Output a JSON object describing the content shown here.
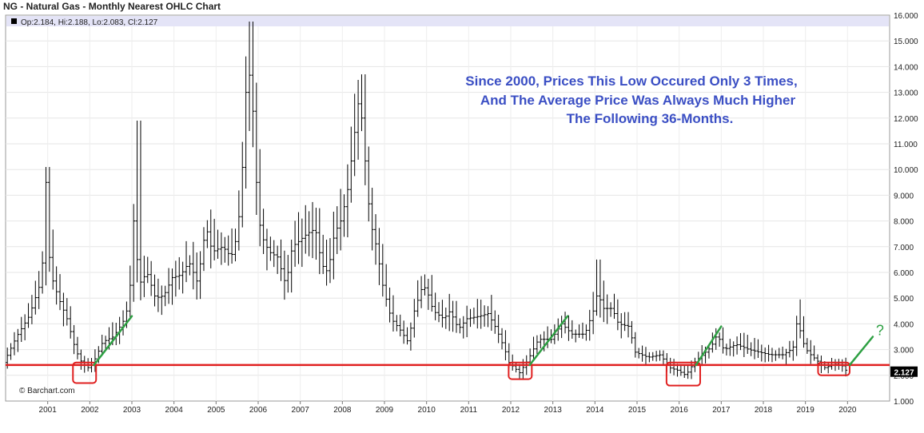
{
  "chart_data": {
    "type": "ohlc",
    "title": "NG - Natural Gas - Monthly Nearest OHLC Chart",
    "info_line": "Op:2.184, Hi:2.188, Lo:2.083, Cl:2.127",
    "annotation": [
      "Since 2000, Prices This Low Occured Only 3 Times,",
      "And The Average Price Was Always Much Higher",
      "The Following 36-Months."
    ],
    "question_mark": "?",
    "last_price": "2.127",
    "source": "© Barchart.com",
    "ylim": [
      1,
      16
    ],
    "y_ticks": [
      "1.000",
      "2.000",
      "3.000",
      "4.000",
      "5.000",
      "6.000",
      "7.000",
      "8.000",
      "9.000",
      "10.000",
      "11.000",
      "12.000",
      "13.000",
      "14.000",
      "15.000",
      "16.000"
    ],
    "x_ticks": [
      "2001",
      "2002",
      "2003",
      "2004",
      "2005",
      "2006",
      "2007",
      "2008",
      "2009",
      "2010",
      "2011",
      "2012",
      "2013",
      "2014",
      "2015",
      "2016",
      "2017",
      "2018",
      "2019",
      "2020"
    ],
    "support_level": 2.4,
    "colors": {
      "bars": "#000000",
      "support": "#e02020",
      "trend": "#2ea043",
      "annotation": "#3b4fc4",
      "info_bg": "#e4e4f7"
    },
    "low_boxes": [
      {
        "x_from": 2001.6,
        "x_to": 2002.15,
        "y_from": 1.7,
        "y_to": 2.5
      },
      {
        "x_from": 2011.95,
        "x_to": 2012.5,
        "y_from": 1.85,
        "y_to": 2.5
      },
      {
        "x_from": 2015.7,
        "x_to": 2016.5,
        "y_from": 1.6,
        "y_to": 2.5
      },
      {
        "x_from": 2019.3,
        "x_to": 2020.05,
        "y_from": 2.0,
        "y_to": 2.5
      }
    ],
    "trend_lines": [
      {
        "x1": 2002.1,
        "y1": 2.4,
        "x2": 2003.0,
        "y2": 4.3
      },
      {
        "x1": 2012.45,
        "y1": 2.4,
        "x2": 2013.35,
        "y2": 4.3
      },
      {
        "x1": 2016.4,
        "y1": 2.4,
        "x2": 2017.0,
        "y2": 3.9
      },
      {
        "x1": 2020.05,
        "y1": 2.4,
        "x2": 2020.6,
        "y2": 3.5
      }
    ],
    "series": [
      {
        "name": "",
        "anchors": [
          [
            2000.0,
            2.5
          ],
          [
            2000.3,
            3.5
          ],
          [
            2000.6,
            4.3
          ],
          [
            2000.85,
            5.5
          ],
          [
            2000.95,
            6.8
          ],
          [
            2001.0,
            9.5
          ],
          [
            2001.1,
            6.0
          ],
          [
            2001.3,
            5.0
          ],
          [
            2001.5,
            4.2
          ],
          [
            2001.7,
            3.0
          ],
          [
            2001.85,
            2.5
          ],
          [
            2002.0,
            2.3
          ],
          [
            2002.1,
            2.4
          ],
          [
            2002.35,
            3.3
          ],
          [
            2002.6,
            3.5
          ],
          [
            2002.8,
            4.0
          ],
          [
            2002.9,
            4.3
          ],
          [
            2003.0,
            5.5
          ],
          [
            2003.1,
            8.5
          ],
          [
            2003.2,
            5.5
          ],
          [
            2003.4,
            6.0
          ],
          [
            2003.6,
            5.0
          ],
          [
            2003.8,
            5.1
          ],
          [
            2004.0,
            5.8
          ],
          [
            2004.2,
            5.9
          ],
          [
            2004.4,
            6.4
          ],
          [
            2004.6,
            5.6
          ],
          [
            2004.8,
            7.8
          ],
          [
            2004.95,
            6.8
          ],
          [
            2005.2,
            7.0
          ],
          [
            2005.4,
            6.6
          ],
          [
            2005.55,
            7.5
          ],
          [
            2005.65,
            9.5
          ],
          [
            2005.75,
            13.0
          ],
          [
            2005.85,
            13.8
          ],
          [
            2005.95,
            11.5
          ],
          [
            2006.0,
            9.5
          ],
          [
            2006.1,
            7.5
          ],
          [
            2006.3,
            6.8
          ],
          [
            2006.5,
            6.6
          ],
          [
            2006.7,
            5.5
          ],
          [
            2006.85,
            7.0
          ],
          [
            2007.0,
            7.2
          ],
          [
            2007.2,
            7.5
          ],
          [
            2007.4,
            7.7
          ],
          [
            2007.55,
            6.3
          ],
          [
            2007.7,
            6.0
          ],
          [
            2007.85,
            7.5
          ],
          [
            2008.0,
            8.0
          ],
          [
            2008.15,
            9.0
          ],
          [
            2008.3,
            11.0
          ],
          [
            2008.45,
            13.0
          ],
          [
            2008.55,
            11.0
          ],
          [
            2008.7,
            8.0
          ],
          [
            2008.85,
            7.0
          ],
          [
            2009.0,
            5.5
          ],
          [
            2009.2,
            4.2
          ],
          [
            2009.4,
            3.8
          ],
          [
            2009.6,
            3.3
          ],
          [
            2009.75,
            4.5
          ],
          [
            2009.95,
            5.5
          ],
          [
            2010.05,
            5.3
          ],
          [
            2010.2,
            4.5
          ],
          [
            2010.45,
            4.2
          ],
          [
            2010.6,
            4.5
          ],
          [
            2010.8,
            3.8
          ],
          [
            2011.0,
            4.2
          ],
          [
            2011.3,
            4.3
          ],
          [
            2011.5,
            4.4
          ],
          [
            2011.7,
            3.8
          ],
          [
            2011.9,
            3.0
          ],
          [
            2012.0,
            2.5
          ],
          [
            2012.25,
            2.1
          ],
          [
            2012.45,
            2.6
          ],
          [
            2012.7,
            3.4
          ],
          [
            2013.0,
            3.4
          ],
          [
            2013.25,
            4.0
          ],
          [
            2013.5,
            3.6
          ],
          [
            2013.8,
            3.6
          ],
          [
            2014.0,
            4.5
          ],
          [
            2014.1,
            5.2
          ],
          [
            2014.25,
            4.6
          ],
          [
            2014.45,
            4.6
          ],
          [
            2014.6,
            4.0
          ],
          [
            2014.85,
            3.9
          ],
          [
            2015.0,
            2.9
          ],
          [
            2015.3,
            2.7
          ],
          [
            2015.6,
            2.8
          ],
          [
            2015.8,
            2.3
          ],
          [
            2016.0,
            2.2
          ],
          [
            2016.2,
            2.0
          ],
          [
            2016.4,
            2.5
          ],
          [
            2016.6,
            2.8
          ],
          [
            2016.8,
            3.1
          ],
          [
            2016.95,
            3.6
          ],
          [
            2017.1,
            3.0
          ],
          [
            2017.4,
            3.2
          ],
          [
            2017.7,
            3.0
          ],
          [
            2017.95,
            2.9
          ],
          [
            2018.2,
            2.8
          ],
          [
            2018.5,
            2.8
          ],
          [
            2018.7,
            3.0
          ],
          [
            2018.8,
            3.2
          ],
          [
            2018.85,
            4.4
          ],
          [
            2018.95,
            3.4
          ],
          [
            2019.1,
            2.9
          ],
          [
            2019.3,
            2.6
          ],
          [
            2019.5,
            2.3
          ],
          [
            2019.7,
            2.4
          ],
          [
            2019.85,
            2.5
          ],
          [
            2020.0,
            2.2
          ]
        ]
      }
    ]
  }
}
